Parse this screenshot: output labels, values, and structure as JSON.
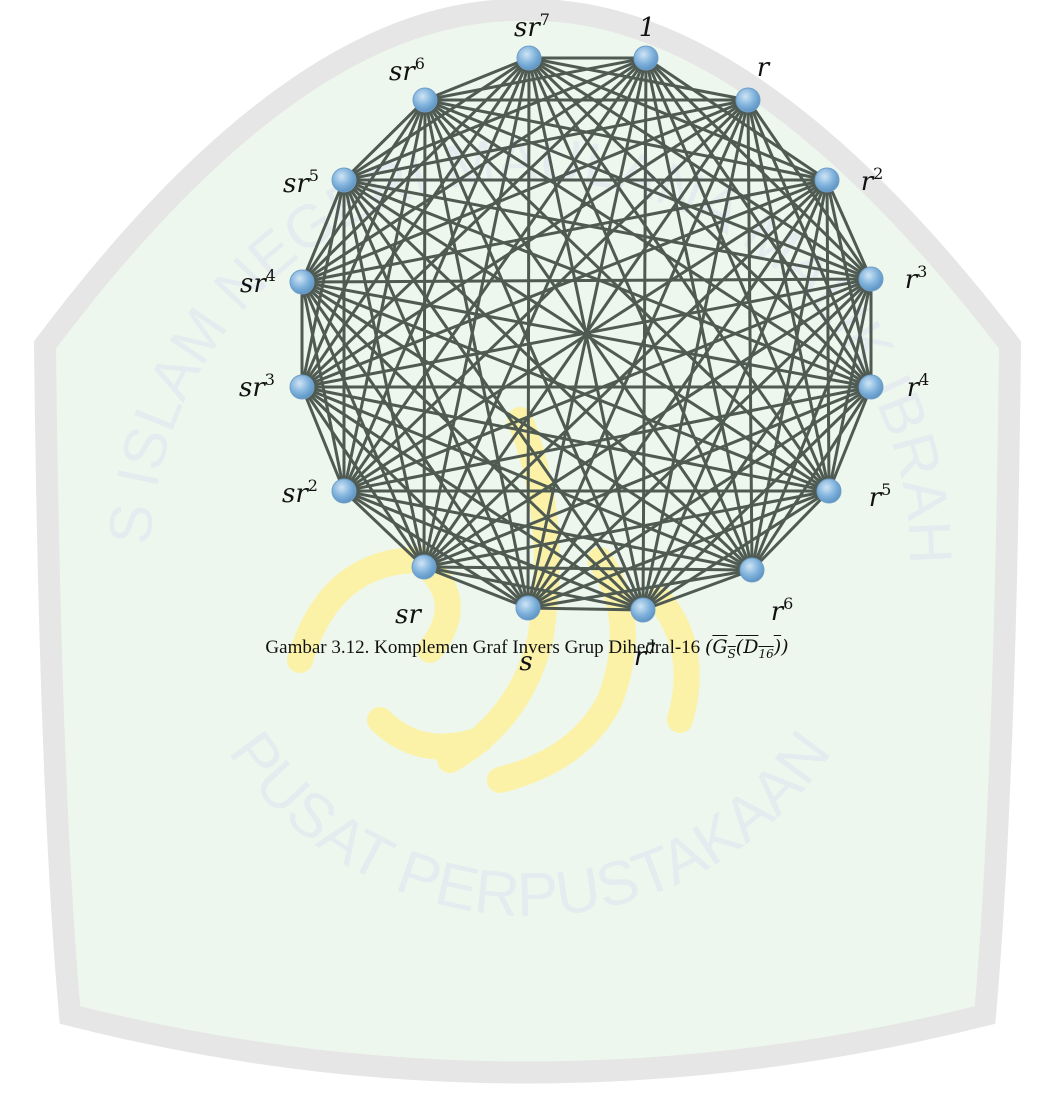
{
  "watermark": {
    "top_text": "UNIVERSITAS ISLAM NEGERI MAULANA MALIK IBRAHIM MALANG",
    "bottom_text": "PUSAT PERPUSTAKAAN",
    "colors": {
      "shield_fill": "#eef7ee",
      "shield_stroke": "#e6e6e6",
      "text": "#e4ecef",
      "calligraphy": "#fbf2a8"
    }
  },
  "graph": {
    "edge_color": "#4e5a52",
    "node_color": "#7fb2dc",
    "nodes": [
      {
        "id": "1",
        "base": "1",
        "sup": ""
      },
      {
        "id": "r",
        "base": "r",
        "sup": ""
      },
      {
        "id": "r2",
        "base": "r",
        "sup": "2"
      },
      {
        "id": "r3",
        "base": "r",
        "sup": "3"
      },
      {
        "id": "r4",
        "base": "r",
        "sup": "4"
      },
      {
        "id": "r5",
        "base": "r",
        "sup": "5"
      },
      {
        "id": "r6",
        "base": "r",
        "sup": "6"
      },
      {
        "id": "r7",
        "base": "r",
        "sup": "7"
      },
      {
        "id": "s",
        "base": "s",
        "sup": ""
      },
      {
        "id": "sr",
        "base": "sr",
        "sup": ""
      },
      {
        "id": "sr2",
        "base": "sr",
        "sup": "2"
      },
      {
        "id": "sr3",
        "base": "sr",
        "sup": "3"
      },
      {
        "id": "sr4",
        "base": "sr",
        "sup": "4"
      },
      {
        "id": "sr5",
        "base": "sr",
        "sup": "5"
      },
      {
        "id": "sr6",
        "base": "sr",
        "sup": "6"
      },
      {
        "id": "sr7",
        "base": "sr",
        "sup": "7"
      }
    ],
    "missing_edges": [
      [
        "1",
        "r"
      ],
      [
        "r",
        "r2"
      ]
    ]
  },
  "caption": {
    "prefix": "Gambar 3.12. Komplemen Graf Invers Grup Dihedral-16 ",
    "math_G": "G",
    "math_sub_S": "S",
    "math_open": "(",
    "math_D": "D",
    "math_sub_16": "16",
    "math_close": ")"
  }
}
